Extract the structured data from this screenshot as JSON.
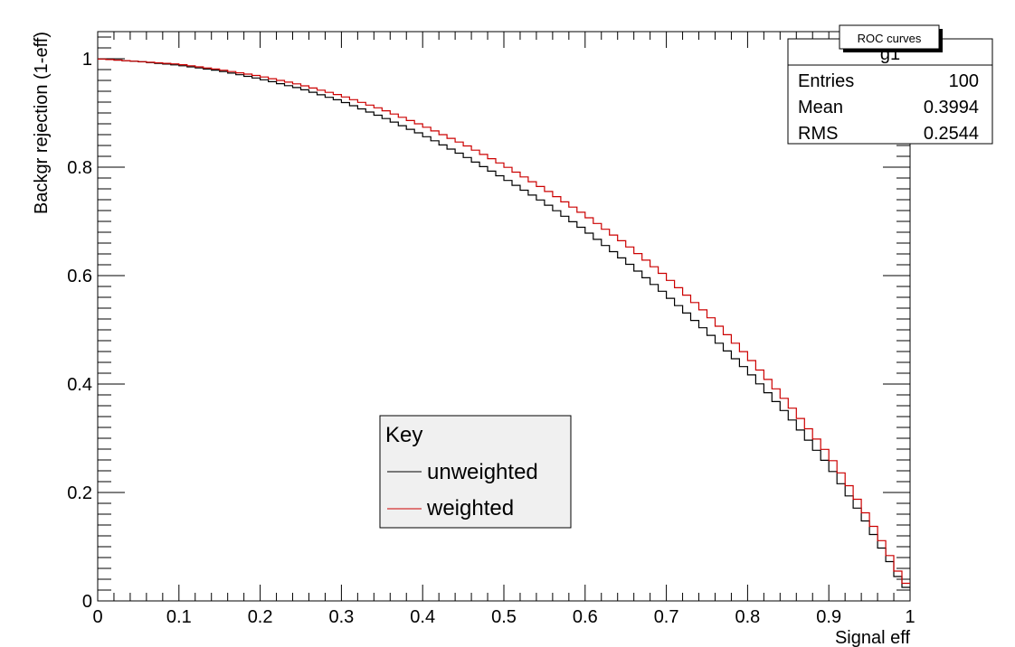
{
  "chart_data": {
    "type": "line",
    "title": "ROC curves",
    "xlabel": "Signal eff",
    "ylabel": "Backgr rejection (1-eff)",
    "xlim": [
      0,
      1
    ],
    "ylim": [
      0,
      1.05
    ],
    "grid": false,
    "line_style": "step",
    "x_ticks": [
      "0",
      "0.1",
      "0.2",
      "0.3",
      "0.4",
      "0.5",
      "0.6",
      "0.7",
      "0.8",
      "0.9",
      "1"
    ],
    "y_ticks": [
      "0",
      "0.2",
      "0.4",
      "0.6",
      "0.8",
      "1"
    ],
    "x_tick_values": [
      0,
      0.1,
      0.2,
      0.3,
      0.4,
      0.5,
      0.6,
      0.7,
      0.8,
      0.9,
      1.0
    ],
    "y_tick_values": [
      0,
      0.2,
      0.4,
      0.6,
      0.8,
      1.0
    ],
    "stats": {
      "name": "g1",
      "rows": [
        {
          "label": "Entries",
          "value": "100"
        },
        {
          "label": "Mean",
          "value": "0.3994"
        },
        {
          "label": "RMS",
          "value": "0.2544"
        }
      ]
    },
    "legend": {
      "title": "Key",
      "position": "bottom-center",
      "entries": [
        {
          "name": "unweighted",
          "color": "#000000"
        },
        {
          "name": "weighted",
          "color": "#cc0000"
        }
      ]
    },
    "series": [
      {
        "name": "unweighted",
        "color": "#000000",
        "x": [
          0,
          0.05,
          0.1,
          0.15,
          0.2,
          0.25,
          0.3,
          0.35,
          0.4,
          0.45,
          0.5,
          0.55,
          0.6,
          0.65,
          0.7,
          0.75,
          0.8,
          0.85,
          0.9,
          0.92,
          0.94,
          0.96,
          0.98,
          0.99,
          1.0
        ],
        "y": [
          1.0,
          0.995,
          0.988,
          0.978,
          0.963,
          0.945,
          0.922,
          0.893,
          0.86,
          0.822,
          0.78,
          0.735,
          0.684,
          0.627,
          0.565,
          0.497,
          0.425,
          0.343,
          0.25,
          0.205,
          0.16,
          0.11,
          0.06,
          0.03,
          0.02
        ]
      },
      {
        "name": "weighted",
        "color": "#cc0000",
        "x": [
          0,
          0.05,
          0.1,
          0.15,
          0.2,
          0.25,
          0.3,
          0.35,
          0.4,
          0.45,
          0.5,
          0.55,
          0.6,
          0.65,
          0.7,
          0.75,
          0.8,
          0.85,
          0.9,
          0.92,
          0.94,
          0.96,
          0.98,
          0.99,
          1.0
        ],
        "y": [
          1.0,
          0.995,
          0.99,
          0.98,
          0.968,
          0.952,
          0.932,
          0.907,
          0.877,
          0.843,
          0.804,
          0.76,
          0.712,
          0.659,
          0.598,
          0.53,
          0.452,
          0.365,
          0.27,
          0.225,
          0.175,
          0.125,
          0.07,
          0.04,
          0.025
        ]
      }
    ]
  }
}
